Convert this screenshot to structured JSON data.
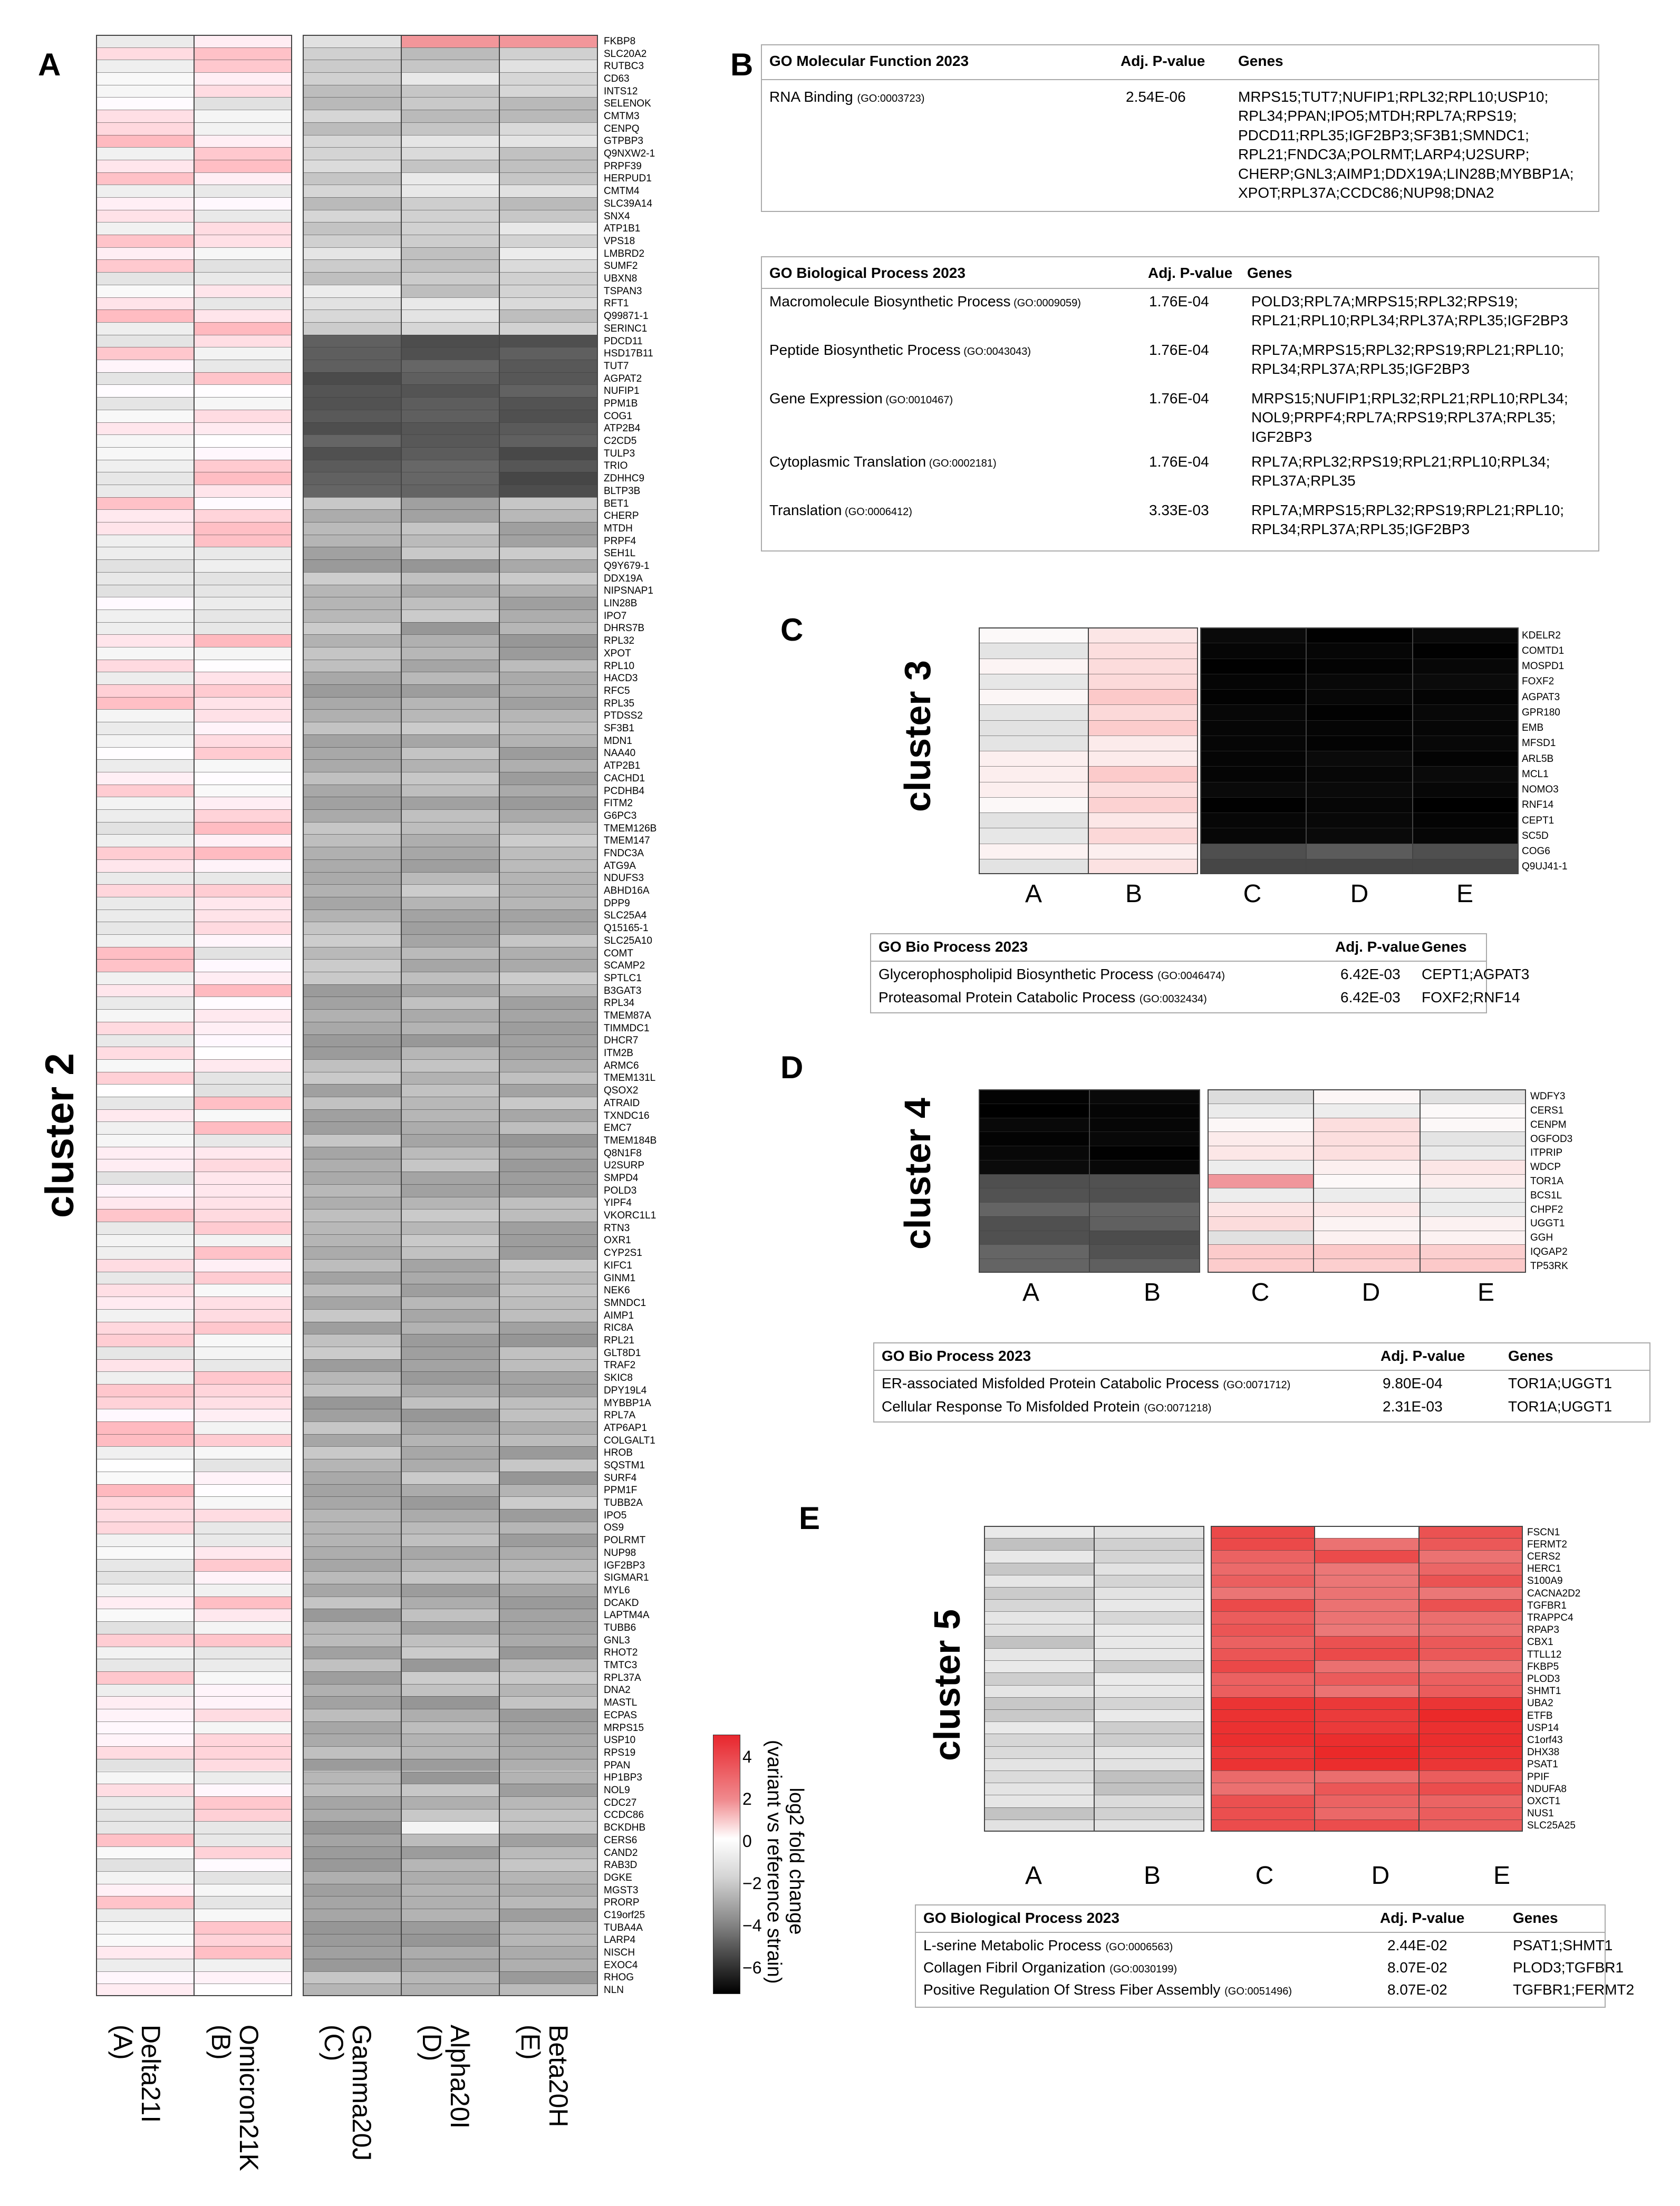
{
  "panels": {
    "A": "A",
    "B": "B",
    "C": "C",
    "D": "D",
    "E": "E"
  },
  "panelA": {
    "cluster_label": "cluster 2",
    "strains": [
      "Delta21I\n(A)",
      "Omicron21K\n(B)",
      "Gamma20J\n(C)",
      "Alpha20I\n(D)",
      "Beta20H\n(E)"
    ],
    "strain_names": [
      "Delta21I",
      "Omicron21K",
      "Gamma20J",
      "Alpha20I",
      "Beta20H"
    ],
    "strain_letters": [
      "(A)",
      "(B)",
      "(C)",
      "(D)",
      "(E)"
    ],
    "genes": [
      "FKBP8",
      "SLC20A2",
      "RUTBC3",
      "CD63",
      "INTS12",
      "SELENOK",
      "CMTM3",
      "CENPQ",
      "GTPBP3",
      "Q9NXW2-1",
      "PRPF39",
      "HERPUD1",
      "CMTM4",
      "SLC39A14",
      "SNX4",
      "ATP1B1",
      "VPS18",
      "LMBRD2",
      "SUMF2",
      "UBXN8",
      "TSPAN3",
      "RFT1",
      "Q99871-1",
      "SERINC1",
      "PDCD11",
      "HSD17B11",
      "TUT7",
      "AGPAT2",
      "NUFIP1",
      "PPM1B",
      "COG1",
      "ATP2B4",
      "C2CD5",
      "TULP3",
      "TRIO",
      "ZDHHC9",
      "BLTP3B",
      "BET1",
      "CHERP",
      "MTDH",
      "PRPF4",
      "SEH1L",
      "Q9Y679-1",
      "DDX19A",
      "NIPSNAP1",
      "LIN28B",
      "IPO7",
      "DHRS7B",
      "RPL32",
      "XPOT",
      "RPL10",
      "HACD3",
      "RFC5",
      "RPL35",
      "PTDSS2",
      "SF3B1",
      "MDN1",
      "NAA40",
      "ATP2B1",
      "CACHD1",
      "PCDHB4",
      "FITM2",
      "G6PC3",
      "TMEM126B",
      "TMEM147",
      "FNDC3A",
      "ATG9A",
      "NDUFS3",
      "ABHD16A",
      "DPP9",
      "SLC25A4",
      "Q15165-1",
      "SLC25A10",
      "COMT",
      "SCAMP2",
      "SPTLC1",
      "B3GAT3",
      "RPL34",
      "TMEM87A",
      "TIMMDC1",
      "DHCR7",
      "ITM2B",
      "ARMC6",
      "TMEM131L",
      "QSOX2",
      "ATRAID",
      "TXNDC16",
      "EMC7",
      "TMEM184B",
      "Q8N1F8",
      "U2SURP",
      "SMPD4",
      "POLD3",
      "YIPF4",
      "VKORC1L1",
      "RTN3",
      "OXR1",
      "CYP2S1",
      "KIFC1",
      "GINM1",
      "NEK6",
      "SMNDC1",
      "AIMP1",
      "RIC8A",
      "RPL21",
      "GLT8D1",
      "TRAF2",
      "SKIC8",
      "DPY19L4",
      "MYBBP1A",
      "RPL7A",
      "ATP6AP1",
      "COLGALT1",
      "HROB",
      "SQSTM1",
      "SURF4",
      "PPM1F",
      "TUBB2A",
      "IPO5",
      "OS9",
      "POLRMT",
      "NUP98",
      "IGF2BP3",
      "SIGMAR1",
      "MYL6",
      "DCAKD",
      "LAPTM4A",
      "TUBB6",
      "GNL3",
      "RHOT2",
      "TMTC3",
      "RPL37A",
      "DNA2",
      "MASTL",
      "ECPAS",
      "MRPS15",
      "USP10",
      "RPS19",
      "PPAN",
      "HP1BP3",
      "NOL9",
      "CDC27",
      "CCDC86",
      "BCKDHB",
      "CERS6",
      "CAND2",
      "RAB3D",
      "DGKE",
      "MGST3",
      "PRORP",
      "C19orf25",
      "TUBA4A",
      "LARP4",
      "NISCH",
      "EXOC4",
      "RHOG",
      "NLN"
    ],
    "legend": {
      "title": "log2 fold change",
      "subtitle": "(variant vs reference strain)",
      "ticks": [
        "4",
        "2",
        "0",
        "−2",
        "−4",
        "−6"
      ]
    }
  },
  "panelB": {
    "mf": {
      "title": "GO Molecular Function 2023",
      "col_p": "Adj. P-value",
      "col_genes": "Genes",
      "rows": [
        {
          "term": "RNA Binding",
          "id": "(GO:0003723)",
          "p": "2.54E-06",
          "genes": [
            "MRPS15;TUT7;NUFIP1;RPL32;RPL10;USP10;",
            "RPL34;PPAN;IPO5;MTDH;RPL7A;RPS19;",
            "PDCD11;RPL35;IGF2BP3;SF3B1;SMNDC1;",
            "RPL21;FNDC3A;POLRMT;LARP4;U2SURP;",
            "CHERP;GNL3;AIMP1;DDX19A;LIN28B;MYBBP1A;",
            "XPOT;RPL37A;CCDC86;NUP98;DNA2"
          ]
        }
      ]
    },
    "bp": {
      "title": "GO Biological Process 2023",
      "col_p": "Adj. P-value",
      "col_genes": "Genes",
      "rows": [
        {
          "term": "Macromolecule Biosynthetic Process",
          "id": "(GO:0009059)",
          "p": "1.76E-04",
          "genes": [
            "POLD3;RPL7A;MRPS15;RPL32;RPS19;",
            "RPL21;RPL10;RPL34;RPL37A;RPL35;IGF2BP3"
          ]
        },
        {
          "term": "Peptide Biosynthetic Process",
          "id": "(GO:0043043)",
          "p": "1.76E-04",
          "genes": [
            "RPL7A;MRPS15;RPL32;RPS19;RPL21;RPL10;",
            "RPL34;RPL37A;RPL35;IGF2BP3"
          ]
        },
        {
          "term": "Gene Expression",
          "id": "(GO:0010467)",
          "p": "1.76E-04",
          "genes": [
            "MRPS15;NUFIP1;RPL32;RPL21;RPL10;RPL34;",
            "NOL9;PRPF4;RPL7A;RPS19;RPL37A;RPL35;",
            "IGF2BP3"
          ]
        },
        {
          "term": "Cytoplasmic Translation",
          "id": "(GO:0002181)",
          "p": "1.76E-04",
          "genes": [
            "RPL7A;RPL32;RPS19;RPL21;RPL10;RPL34;",
            "RPL37A;RPL35"
          ]
        },
        {
          "term": "Translation",
          "id": "(GO:0006412)",
          "p": "3.33E-03",
          "genes": [
            "RPL7A;MRPS15;RPL32;RPS19;RPL21;RPL10;",
            "RPL34;RPL37A;RPL35;IGF2BP3"
          ]
        }
      ]
    }
  },
  "panelC": {
    "cluster_label": "cluster 3",
    "cols": [
      "A",
      "B",
      "C",
      "D",
      "E"
    ],
    "genes": [
      "KDELR2",
      "COMTD1",
      "MOSPD1",
      "FOXF2",
      "AGPAT3",
      "GPR180",
      "EMB",
      "MFSD1",
      "ARL5B",
      "MCL1",
      "NOMO3",
      "RNF14",
      "CEPT1",
      "SC5D",
      "COG6",
      "Q9UJ41-1"
    ],
    "table": {
      "title": "GO Bio Process 2023",
      "col_p": "Adj. P-value",
      "col_genes": "Genes",
      "rows": [
        {
          "term": "Glycerophospholipid Biosynthetic Process",
          "id": "(GO:0046474)",
          "p": "6.42E-03",
          "genes": "CEPT1;AGPAT3"
        },
        {
          "term": "Proteasomal Protein Catabolic Process",
          "id": "(GO:0032434)",
          "p": "6.42E-03",
          "genes": "FOXF2;RNF14"
        }
      ]
    }
  },
  "panelD": {
    "cluster_label": "cluster 4",
    "cols": [
      "A",
      "B",
      "C",
      "D",
      "E"
    ],
    "genes": [
      "WDFY3",
      "CERS1",
      "CENPM",
      "OGFOD3",
      "ITPRIP",
      "WDCP",
      "TOR1A",
      "BCS1L",
      "CHPF2",
      "UGGT1",
      "GGH",
      "IQGAP2",
      "TP53RK"
    ],
    "table": {
      "title": "GO Bio Process 2023",
      "col_p": "Adj. P-value",
      "col_genes": "Genes",
      "rows": [
        {
          "term": "ER-associated Misfolded Protein Catabolic Process",
          "id": "(GO:0071712)",
          "p": "9.80E-04",
          "genes": "TOR1A;UGGT1"
        },
        {
          "term": "Cellular Response To Misfolded Protein",
          "id": "(GO:0071218)",
          "p": "2.31E-03",
          "genes": "TOR1A;UGGT1"
        }
      ]
    }
  },
  "panelE": {
    "cluster_label": "cluster 5",
    "cols": [
      "A",
      "B",
      "C",
      "D",
      "E"
    ],
    "genes": [
      "FSCN1",
      "FERMT2",
      "CERS2",
      "HERC1",
      "S100A9",
      "CACNA2D2",
      "TGFBR1",
      "TRAPPC4",
      "RPAP3",
      "CBX1",
      "TTLL12",
      "FKBP5",
      "PLOD3",
      "SHMT1",
      "UBA2",
      "ETFB",
      "USP14",
      "C1orf43",
      "DHX38",
      "PSAT1",
      "PPIF",
      "NDUFA8",
      "OXCT1",
      "NUS1",
      "SLC25A25"
    ],
    "table": {
      "title": "GO Biological Process 2023",
      "col_p": "Adj. P-value",
      "col_genes": "Genes",
      "rows": [
        {
          "term": "L-serine Metabolic Process",
          "id": "(GO:0006563)",
          "p": "2.44E-02",
          "genes": "PSAT1;SHMT1"
        },
        {
          "term": "Collagen Fibril Organization",
          "id": "(GO:0030199)",
          "p": "8.07E-02",
          "genes": "PLOD3;TGFBR1"
        },
        {
          "term": "Positive Regulation Of Stress Fiber Assembly",
          "id": "(GO:0051496)",
          "p": "8.07E-02",
          "genes": "TGFBR1;FERMT2"
        }
      ]
    }
  }
}
